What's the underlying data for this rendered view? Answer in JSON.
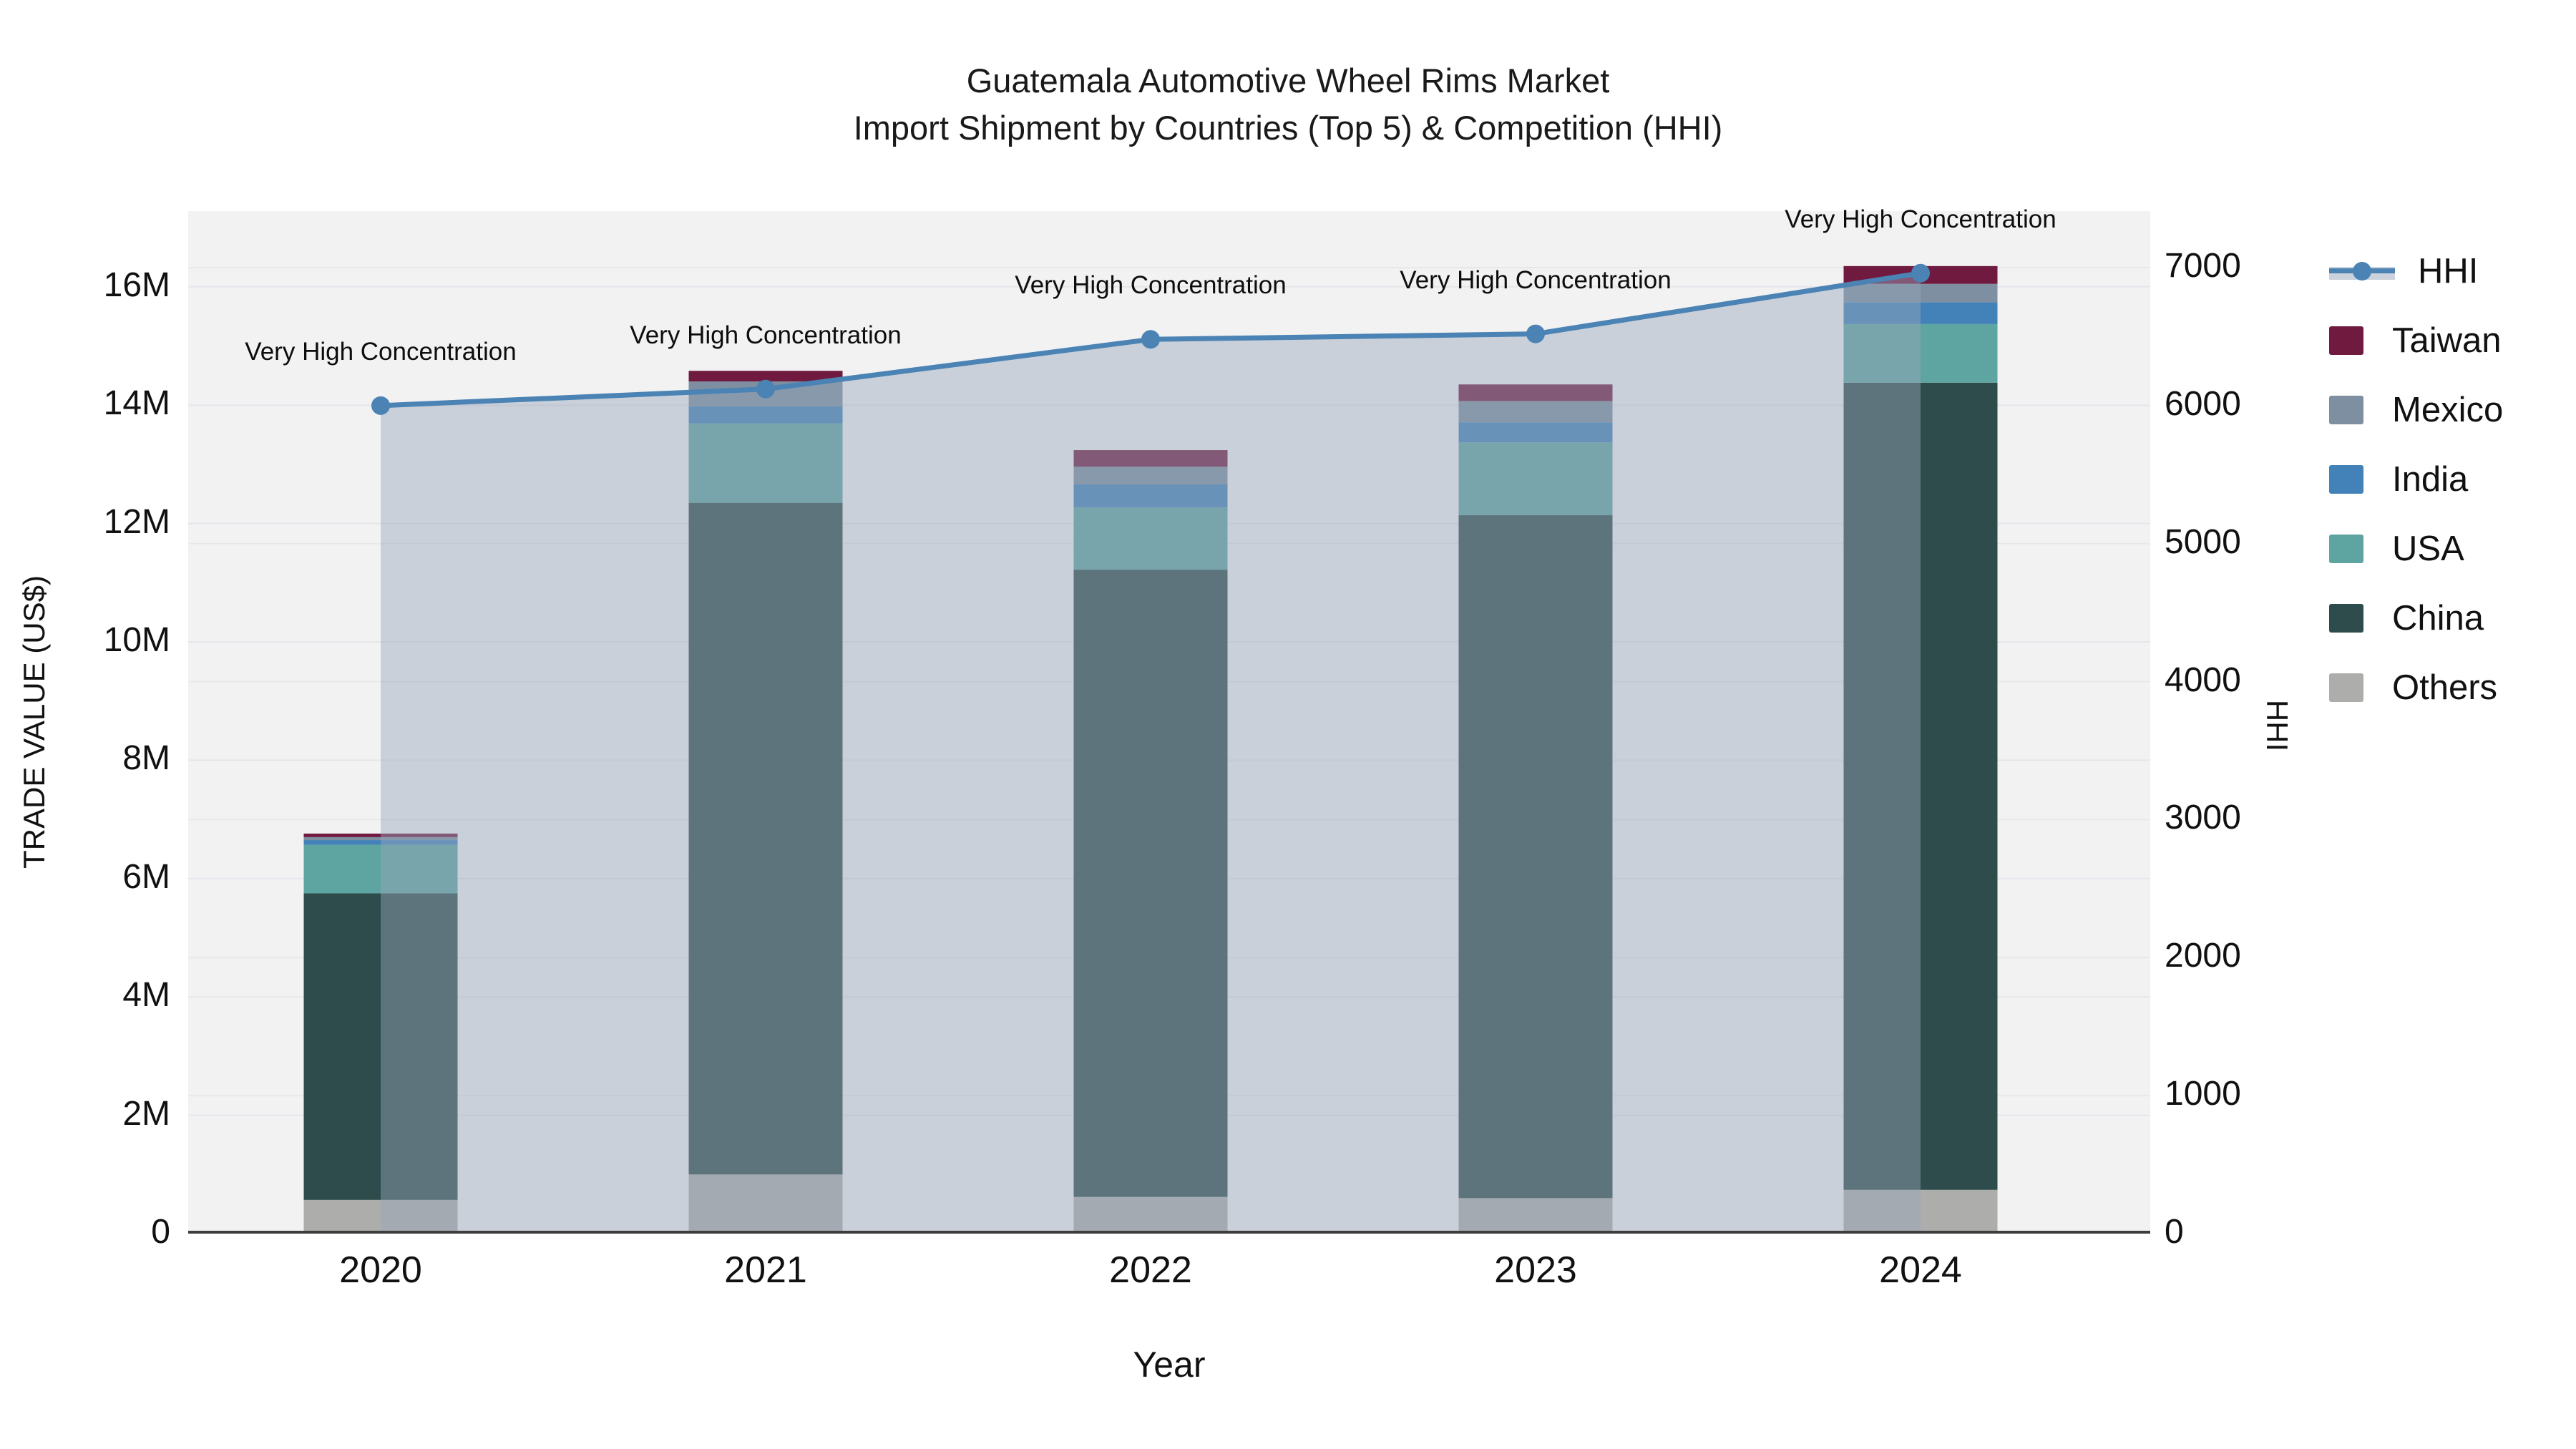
{
  "title": {
    "line1": "Guatemala Automotive Wheel Rims Market",
    "line2": "Import Shipment by Countries (Top 5) & Competition (HHI)"
  },
  "axes": {
    "x_title": "Year",
    "y_left_title": "TRADE VALUE (US$)",
    "y_right_title": "HHI",
    "y_left_ticks": [
      "0",
      "2M",
      "4M",
      "6M",
      "8M",
      "10M",
      "12M",
      "14M",
      "16M"
    ],
    "y_right_ticks": [
      "0",
      "1000",
      "2000",
      "3000",
      "4000",
      "5000",
      "6000",
      "7000"
    ]
  },
  "chart_data": {
    "type": "bar+line",
    "title": "Guatemala Automotive Wheel Rims Market — Import Shipment by Countries (Top 5) & Competition (HHI)",
    "categories": [
      "2020",
      "2021",
      "2022",
      "2023",
      "2024"
    ],
    "bar_unit": "million US$",
    "xlabel": "Year",
    "ylabel_left": "TRADE VALUE (US$)",
    "ylabel_right": "HHI",
    "y_left_range": [
      0,
      17.28
    ],
    "y_right_range": [
      0,
      7410
    ],
    "grid": true,
    "legend_position": "right",
    "stack_order_bottom_to_top": [
      "Others",
      "China",
      "USA",
      "India",
      "Mexico",
      "Taiwan"
    ],
    "series": [
      {
        "name": "Others",
        "color": "#adadab",
        "values": [
          0.57,
          1.0,
          0.62,
          0.6,
          0.74
        ]
      },
      {
        "name": "China",
        "color": "#2d4c4b",
        "values": [
          5.18,
          11.35,
          10.6,
          11.54,
          13.64
        ]
      },
      {
        "name": "USA",
        "color": "#5ea4a1",
        "values": [
          0.82,
          1.34,
          1.05,
          1.23,
          0.99
        ]
      },
      {
        "name": "India",
        "color": "#4282b8",
        "values": [
          0.08,
          0.29,
          0.39,
          0.34,
          0.37
        ]
      },
      {
        "name": "Mexico",
        "color": "#7d8fa1",
        "values": [
          0.05,
          0.42,
          0.3,
          0.36,
          0.31
        ]
      },
      {
        "name": "Taiwan",
        "color": "#701a3f",
        "values": [
          0.06,
          0.18,
          0.28,
          0.28,
          0.3
        ]
      }
    ],
    "bar_totals": [
      6.76,
      14.58,
      13.24,
      14.35,
      16.35
    ],
    "line_series": {
      "name": "HHI",
      "color": "#4a83b4",
      "area_fill_color": "rgba(154,166,186,0.45)",
      "values": [
        6000,
        6120,
        6480,
        6520,
        6960
      ]
    },
    "annotations": [
      {
        "text": "Very High Concentration",
        "category": "2020"
      },
      {
        "text": "Very High Concentration",
        "category": "2021"
      },
      {
        "text": "Very High Concentration",
        "category": "2022"
      },
      {
        "text": "Very High Concentration",
        "category": "2023"
      },
      {
        "text": "Very High Concentration",
        "category": "2024"
      }
    ],
    "legend_order_top_to_bottom": [
      "HHI",
      "Taiwan",
      "Mexico",
      "India",
      "USA",
      "China",
      "Others"
    ]
  }
}
